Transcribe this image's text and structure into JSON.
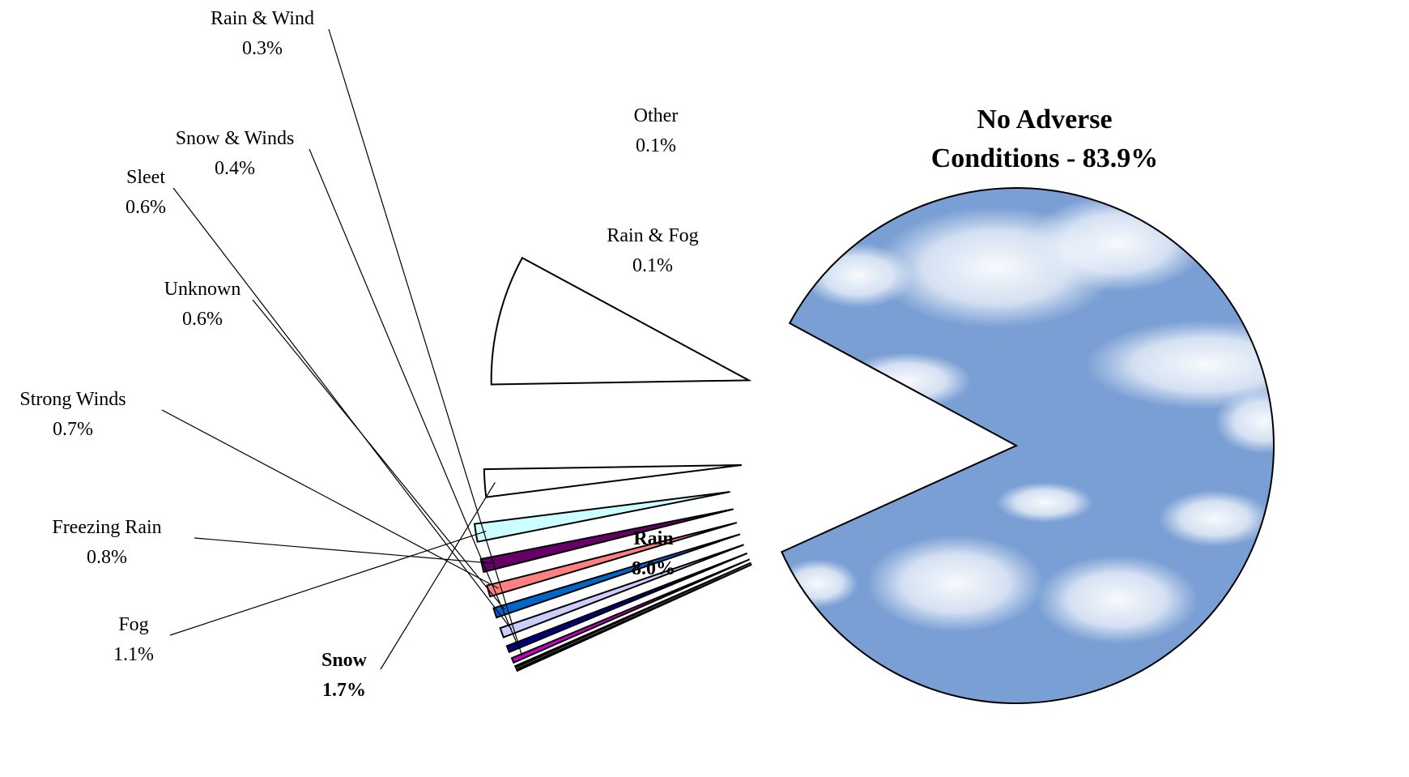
{
  "chart_data": {
    "type": "pie",
    "title": "",
    "slices": [
      {
        "label": "No Adverse Conditions",
        "value": 83.9,
        "value_label": "83.9%",
        "pattern": "sky",
        "exploded": false,
        "bold": true
      },
      {
        "label": "Rain",
        "value": 8.0,
        "value_label": "8.0%",
        "pattern": "storm",
        "exploded": true,
        "bold": true
      },
      {
        "label": "Snow",
        "value": 1.7,
        "value_label": "1.7%",
        "pattern": "snow",
        "exploded": true,
        "bold": true
      },
      {
        "label": "Fog",
        "value": 1.1,
        "value_label": "1.1%",
        "color": "#ccffff",
        "exploded": true,
        "bold": false
      },
      {
        "label": "Freezing Rain",
        "value": 0.8,
        "value_label": "0.8%",
        "color": "#660066",
        "exploded": true,
        "bold": false
      },
      {
        "label": "Strong Winds",
        "value": 0.7,
        "value_label": "0.7%",
        "color": "#ff8080",
        "exploded": true,
        "bold": false
      },
      {
        "label": "Unknown",
        "value": 0.6,
        "value_label": "0.6%",
        "color": "#0066cc",
        "exploded": true,
        "bold": false
      },
      {
        "label": "Sleet",
        "value": 0.6,
        "value_label": "0.6%",
        "color": "#ccccff",
        "exploded": true,
        "bold": false
      },
      {
        "label": "Snow & Winds",
        "value": 0.4,
        "value_label": "0.4%",
        "color": "#000080",
        "exploded": true,
        "bold": false
      },
      {
        "label": "Rain & Wind",
        "value": 0.3,
        "value_label": "0.3%",
        "color": "#cc00cc",
        "exploded": true,
        "bold": false
      },
      {
        "label": "Other",
        "value": 0.1,
        "value_label": "0.1%",
        "color": "#000000",
        "exploded": true,
        "bold": false
      },
      {
        "label": "Rain & Fog",
        "value": 0.1,
        "value_label": "0.1%",
        "color": "#33cccc",
        "exploded": true,
        "bold": false
      }
    ],
    "colors": {
      "sky": "#7a9fd4",
      "cloud": "#eef3fb",
      "lightning": "#ffee33",
      "lightning_edge": "#d4a800",
      "storm_cloud": "#bfe8f5",
      "snow_band": "#8fbde0"
    }
  }
}
